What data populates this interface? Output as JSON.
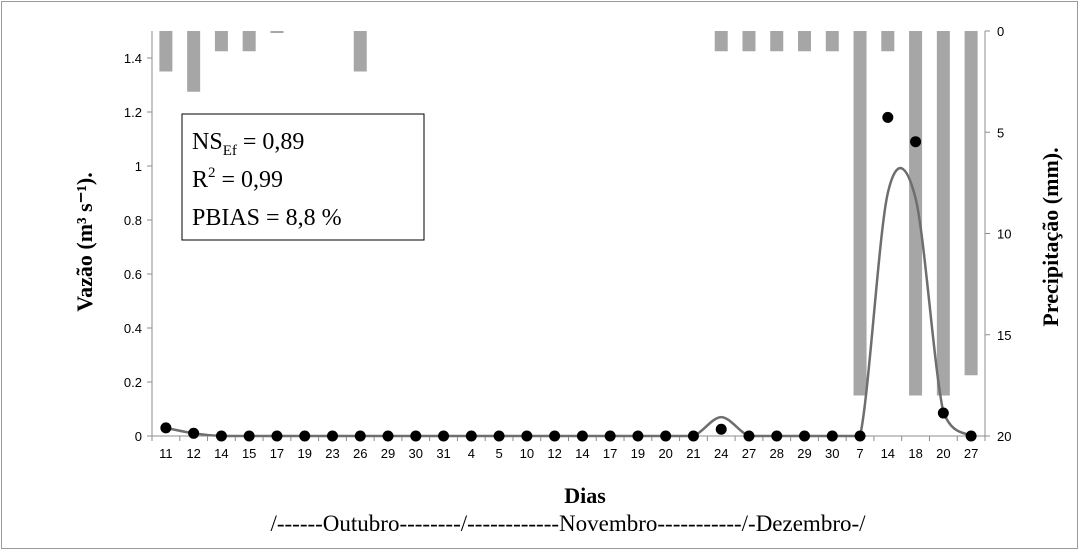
{
  "chart_data": {
    "type": "bar+line+scatter",
    "categories": [
      "11",
      "12",
      "14",
      "15",
      "17",
      "19",
      "23",
      "26",
      "29",
      "30",
      "31",
      "4",
      "5",
      "10",
      "12",
      "14",
      "17",
      "19",
      "20",
      "21",
      "24",
      "27",
      "28",
      "29",
      "30",
      "7",
      "14",
      "18",
      "20",
      "27"
    ],
    "xlabel": "Dias",
    "months_label": "/------Outubro--------/------------Novembro-----------/-Dezembro-/",
    "ylabel_left": "Vazão (m³ s⁻¹).",
    "ylabel_right": "Precipitação (mm).",
    "y_left_lim": [
      0,
      1.5
    ],
    "y_left_ticks": [
      "0",
      "0.2",
      "0.4",
      "0.6",
      "0.8",
      "1",
      "1.2",
      "1.4"
    ],
    "y_left_tick_values": [
      0,
      0.2,
      0.4,
      0.6,
      0.8,
      1.0,
      1.2,
      1.4
    ],
    "y_right_lim": [
      0,
      20
    ],
    "y_right_inverted": true,
    "y_right_ticks": [
      "0",
      "5",
      "10",
      "15",
      "20"
    ],
    "y_right_tick_values": [
      0,
      5,
      10,
      15,
      20
    ],
    "precipitation": [
      2,
      3,
      1,
      1,
      0.1,
      0,
      0,
      2,
      0,
      0,
      0,
      0,
      0,
      0,
      0,
      0,
      0,
      0,
      0,
      0,
      1,
      1,
      1,
      1,
      1,
      18,
      1,
      18,
      18,
      17
    ],
    "observed_flow": [
      0.03,
      0.01,
      0,
      0,
      0,
      0,
      0,
      0,
      0,
      0,
      0,
      0,
      0,
      0,
      0,
      0,
      0,
      0,
      0,
      0,
      0.025,
      0,
      0,
      0,
      0,
      0,
      1.18,
      1.09,
      0.085,
      0
    ],
    "simulated_flow": [
      0.03,
      0.01,
      0,
      0,
      0,
      0,
      0,
      0,
      0,
      0,
      0,
      0,
      0,
      0,
      0,
      0,
      0,
      0,
      0,
      0,
      0.07,
      0,
      0,
      0,
      0,
      0,
      0.9,
      0.88,
      0.09,
      0
    ],
    "stats": {
      "ns_base": "NS",
      "ns_sub": "Ef",
      "ns_value": " = 0,89",
      "r_base": "R",
      "r_sup": "2",
      "r_value": " = 0,99",
      "pbias": "PBIAS = 8,8 %"
    },
    "colors": {
      "bar": "#a6a6a6",
      "simulated_line": "#6e6e6e",
      "observed_point": "#000000",
      "axis": "#8c8c8c"
    }
  }
}
